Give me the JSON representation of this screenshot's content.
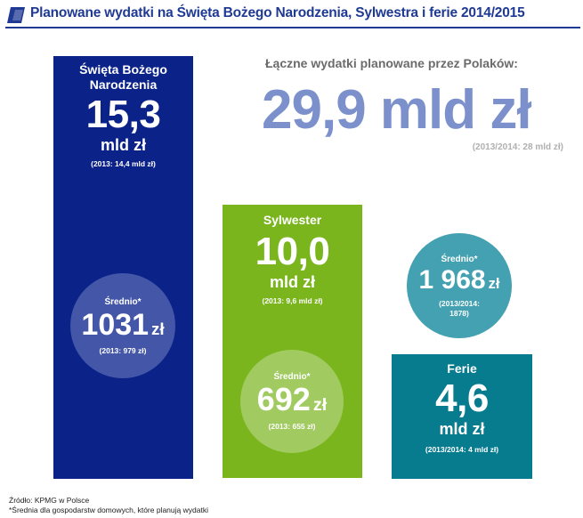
{
  "header": {
    "title": "Planowane wydatki na Święta Bożego Narodzenia, Sylwestra i ferie 2014/2015"
  },
  "total": {
    "label": "Łączne wydatki planowane przez Polaków:",
    "value": "29,9 mld zł",
    "previous": "(2013/2014: 28 mld zł)"
  },
  "chart_data": {
    "type": "bar",
    "title": "Planowane wydatki na Święta Bożego Narodzenia, Sylwestra i ferie 2014/2015",
    "categories": [
      "Święta Bożego Narodzenia",
      "Sylwester",
      "Ferie"
    ],
    "values": [
      15.3,
      10.0,
      4.6
    ],
    "unit": "mld zł",
    "previous_values": [
      14.4,
      9.6,
      4.0
    ],
    "average_per_household": [
      1031,
      692,
      1968
    ],
    "average_previous": [
      979,
      655,
      1878
    ],
    "total": 29.9,
    "total_previous": 28
  },
  "columns": [
    {
      "label": "Święta Bożego Narodzenia",
      "value": "15,3",
      "unit": "mld zł",
      "previous": "(2013: 14,4 mld zł)"
    },
    {
      "label": "Sylwester",
      "value": "10,0",
      "unit": "mld zł",
      "previous": "(2013: 9,6 mld zł)"
    },
    {
      "label": "Ferie",
      "value": "4,6",
      "unit": "mld zł",
      "previous": "(2013/2014: 4 mld zł)"
    }
  ],
  "circles": [
    {
      "label": "Średnio*",
      "value": "1031",
      "unit": "zł",
      "previous": "(2013: 979 zł)"
    },
    {
      "label": "Średnio*",
      "value": "692",
      "unit": "zł",
      "previous": "(2013: 655 zł)"
    },
    {
      "label": "Średnio*",
      "value": "1 968",
      "unit": "zł",
      "previous": "(2013/2014: 1878)"
    }
  ],
  "footer": {
    "source": "Źródło: KPMG w Polsce",
    "note": "*Średnia dla gospodarstw domowych, które planują wydatki"
  },
  "colors": {
    "title": "#1f3a93",
    "swieta": "#0b2288",
    "sylwester": "#7ab51d",
    "ferie": "#087c8f",
    "total": "#7c91cc"
  }
}
